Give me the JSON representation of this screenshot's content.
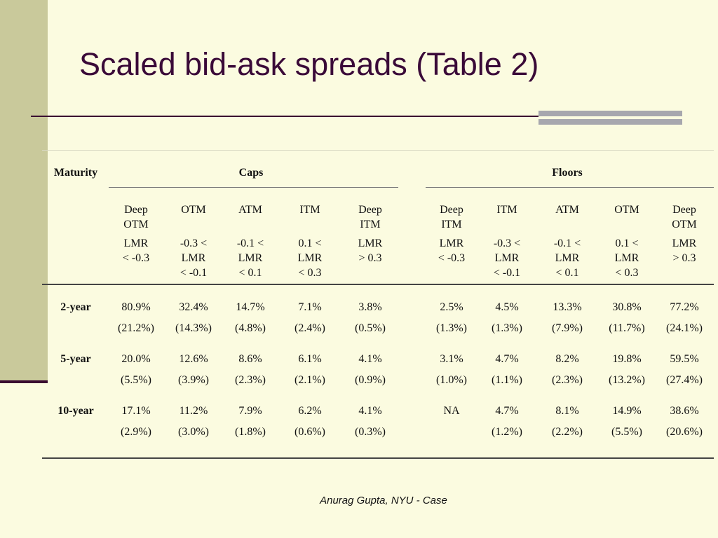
{
  "slide": {
    "title": "Scaled bid-ask spreads (Table 2)",
    "footer": "Anurag Gupta, NYU - Case"
  },
  "table": {
    "maturity_header": "Maturity",
    "caps_header": "Caps",
    "floors_header": "Floors",
    "caps_columns": [
      {
        "moneyness": [
          "Deep",
          "OTM"
        ],
        "lmr": [
          "LMR",
          "< -0.3"
        ]
      },
      {
        "moneyness": [
          "OTM"
        ],
        "lmr": [
          "-0.3 <",
          "LMR",
          "< -0.1"
        ]
      },
      {
        "moneyness": [
          "ATM"
        ],
        "lmr": [
          "-0.1 <",
          "LMR",
          "< 0.1"
        ]
      },
      {
        "moneyness": [
          "ITM"
        ],
        "lmr": [
          "0.1 <",
          "LMR",
          "< 0.3"
        ]
      },
      {
        "moneyness": [
          "Deep",
          "ITM"
        ],
        "lmr": [
          "LMR",
          "> 0.3"
        ]
      }
    ],
    "floors_columns": [
      {
        "moneyness": [
          "Deep",
          "ITM"
        ],
        "lmr": [
          "LMR",
          "< -0.3"
        ]
      },
      {
        "moneyness": [
          "ITM"
        ],
        "lmr": [
          "-0.3 <",
          "LMR",
          "< -0.1"
        ]
      },
      {
        "moneyness": [
          "ATM"
        ],
        "lmr": [
          "-0.1 <",
          "LMR",
          "< 0.1"
        ]
      },
      {
        "moneyness": [
          "OTM"
        ],
        "lmr": [
          "0.1 <",
          "LMR",
          "< 0.3"
        ]
      },
      {
        "moneyness": [
          "Deep",
          "OTM"
        ],
        "lmr": [
          "LMR",
          "> 0.3"
        ]
      }
    ],
    "rows": [
      {
        "maturity": "2-year",
        "caps": [
          "80.9%",
          "32.4%",
          "14.7%",
          "7.1%",
          "3.8%"
        ],
        "caps_sd": [
          "(21.2%)",
          "(14.3%)",
          "(4.8%)",
          "(2.4%)",
          "(0.5%)"
        ],
        "floors": [
          "2.5%",
          "4.5%",
          "13.3%",
          "30.8%",
          "77.2%"
        ],
        "floors_sd": [
          "(1.3%)",
          "(1.3%)",
          "(7.9%)",
          "(11.7%)",
          "(24.1%)"
        ]
      },
      {
        "maturity": "5-year",
        "caps": [
          "20.0%",
          "12.6%",
          "8.6%",
          "6.1%",
          "4.1%"
        ],
        "caps_sd": [
          "(5.5%)",
          "(3.9%)",
          "(2.3%)",
          "(2.1%)",
          "(0.9%)"
        ],
        "floors": [
          "3.1%",
          "4.7%",
          "8.2%",
          "19.8%",
          "59.5%"
        ],
        "floors_sd": [
          "(1.0%)",
          "(1.1%)",
          "(2.3%)",
          "(13.2%)",
          "(27.4%)"
        ]
      },
      {
        "maturity": "10-year",
        "caps": [
          "17.1%",
          "11.2%",
          "7.9%",
          "6.2%",
          "4.1%"
        ],
        "caps_sd": [
          "(2.9%)",
          "(3.0%)",
          "(1.8%)",
          "(0.6%)",
          "(0.3%)"
        ],
        "floors": [
          "NA",
          "4.7%",
          "8.1%",
          "14.9%",
          "38.6%"
        ],
        "floors_sd": [
          "",
          "(1.2%)",
          "(2.2%)",
          "(5.5%)",
          "(20.6%)"
        ]
      }
    ]
  },
  "colors": {
    "background": "#fbfbe0",
    "left_band": "#c9c99b",
    "title_color": "#3a0a38",
    "rule_gray": "#a7a7ae"
  }
}
